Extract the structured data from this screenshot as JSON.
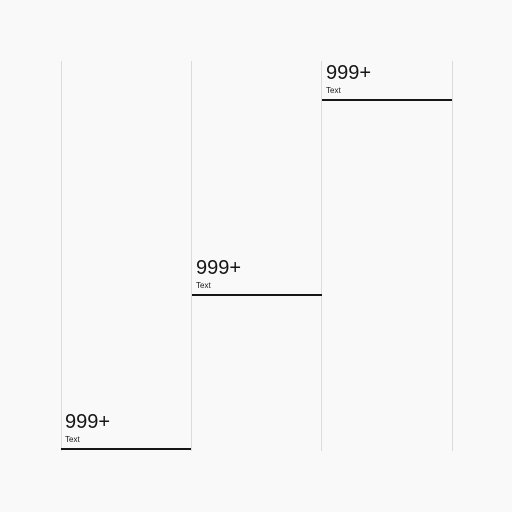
{
  "stats": [
    {
      "value": "999+",
      "label": "Text"
    },
    {
      "value": "999+",
      "label": "Text"
    },
    {
      "value": "999+",
      "label": "Text"
    }
  ]
}
